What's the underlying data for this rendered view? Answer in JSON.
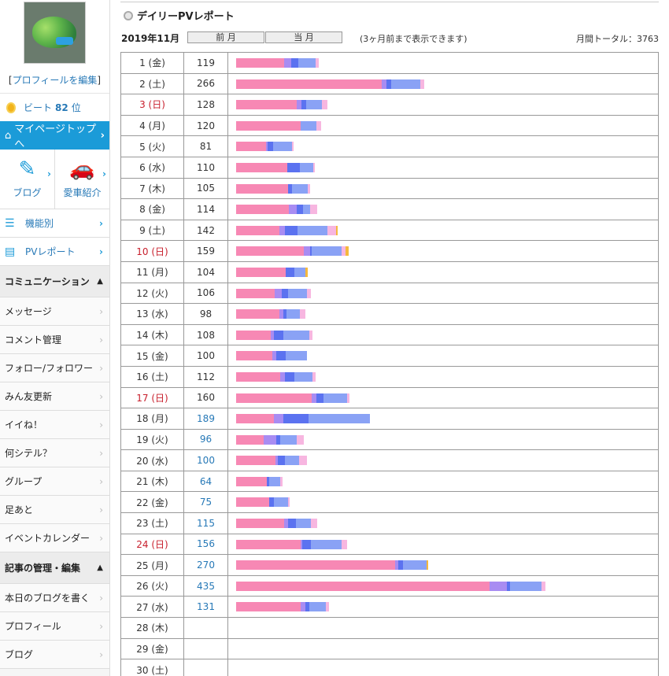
{
  "sidebar": {
    "profile_edit": "プロフィールを編集",
    "beat_label": "ビート",
    "beat_rank": "82",
    "beat_suffix": "位",
    "mypage": "マイページトップへ",
    "tiles": [
      {
        "label": "ブログ",
        "icon": "blog-icon"
      },
      {
        "label": "愛車紹介",
        "icon": "car-icon"
      }
    ],
    "nav": [
      {
        "label": "機能別",
        "icon": "list-icon"
      },
      {
        "label": "PVレポート",
        "icon": "report-icon"
      }
    ],
    "section_comm": "コミュニケーション",
    "comm_items": [
      "メッセージ",
      "コメント管理",
      "フォロー/フォロワー",
      "みん友更新",
      "イイね！",
      "何シテル？",
      "グループ",
      "足あと",
      "イベントカレンダー"
    ],
    "section_articles": "記事の管理・編集",
    "article_items": [
      "本日のブログを書く",
      "プロフィール",
      "ブログ"
    ]
  },
  "main": {
    "title": "デイリーPVレポート",
    "month": "2019年11月",
    "prev_btn": "前 月",
    "curr_btn": "当 月",
    "note": "(3ヶ月前まで表示できます)",
    "total": "月間トータル：3763"
  },
  "colors": {
    "pink": "#f788b4",
    "lavender": "#a88cf2",
    "blue": "#5b72f0",
    "periwinkle": "#8aa2f5",
    "lightpink": "#f7b6e0",
    "orange": "#f5b83c"
  },
  "rows": [
    {
      "day": "1 (金)",
      "count": "119",
      "sun": false,
      "link": false,
      "segs": [
        [
          61,
          "pink"
        ],
        [
          9,
          "lavender"
        ],
        [
          9,
          "blue"
        ],
        [
          22,
          "periwinkle"
        ],
        [
          4,
          "lightpink"
        ]
      ]
    },
    {
      "day": "2 (土)",
      "count": "266",
      "sun": false,
      "link": false,
      "segs": [
        [
          185,
          "pink"
        ],
        [
          6,
          "lavender"
        ],
        [
          6,
          "blue"
        ],
        [
          37,
          "periwinkle"
        ],
        [
          5,
          "lightpink"
        ]
      ]
    },
    {
      "day": "3 (日)",
      "count": "128",
      "sun": true,
      "link": false,
      "segs": [
        [
          77,
          "pink"
        ],
        [
          6,
          "lavender"
        ],
        [
          6,
          "blue"
        ],
        [
          20,
          "periwinkle"
        ],
        [
          7,
          "lightpink"
        ]
      ]
    },
    {
      "day": "4 (月)",
      "count": "120",
      "sun": false,
      "link": false,
      "segs": [
        [
          82,
          "pink"
        ],
        [
          20,
          "periwinkle"
        ],
        [
          6,
          "lightpink"
        ]
      ]
    },
    {
      "day": "5 (火)",
      "count": "81",
      "sun": false,
      "link": false,
      "segs": [
        [
          38,
          "pink"
        ],
        [
          2,
          "lavender"
        ],
        [
          7,
          "blue"
        ],
        [
          24,
          "periwinkle"
        ],
        [
          2,
          "lightpink"
        ]
      ]
    },
    {
      "day": "6 (水)",
      "count": "110",
      "sun": false,
      "link": false,
      "segs": [
        [
          65,
          "pink"
        ],
        [
          16,
          "blue"
        ],
        [
          17,
          "periwinkle"
        ],
        [
          2,
          "lightpink"
        ]
      ]
    },
    {
      "day": "7 (木)",
      "count": "105",
      "sun": false,
      "link": false,
      "segs": [
        [
          66,
          "pink"
        ],
        [
          5,
          "blue"
        ],
        [
          20,
          "periwinkle"
        ],
        [
          3,
          "lightpink"
        ]
      ]
    },
    {
      "day": "8 (金)",
      "count": "114",
      "sun": false,
      "link": false,
      "segs": [
        [
          67,
          "pink"
        ],
        [
          10,
          "lavender"
        ],
        [
          8,
          "blue"
        ],
        [
          9,
          "periwinkle"
        ],
        [
          9,
          "lightpink"
        ]
      ]
    },
    {
      "day": "9 (土)",
      "count": "142",
      "sun": false,
      "link": false,
      "segs": [
        [
          55,
          "pink"
        ],
        [
          7,
          "lavender"
        ],
        [
          16,
          "blue"
        ],
        [
          38,
          "periwinkle"
        ],
        [
          11,
          "lightpink"
        ],
        [
          2,
          "orange"
        ]
      ]
    },
    {
      "day": "10 (日)",
      "count": "159",
      "sun": true,
      "link": false,
      "segs": [
        [
          86,
          "pink"
        ],
        [
          8,
          "lavender"
        ],
        [
          2,
          "blue"
        ],
        [
          18,
          "periwinkle"
        ],
        [
          20,
          "periwinkle"
        ],
        [
          5,
          "lightpink"
        ],
        [
          4,
          "orange"
        ]
      ]
    },
    {
      "day": "11 (月)",
      "count": "104",
      "sun": false,
      "link": false,
      "segs": [
        [
          63,
          "pink"
        ],
        [
          11,
          "blue"
        ],
        [
          14,
          "periwinkle"
        ],
        [
          3,
          "orange"
        ]
      ]
    },
    {
      "day": "12 (火)",
      "count": "106",
      "sun": false,
      "link": false,
      "segs": [
        [
          49,
          "pink"
        ],
        [
          9,
          "lavender"
        ],
        [
          8,
          "blue"
        ],
        [
          24,
          "periwinkle"
        ],
        [
          5,
          "lightpink"
        ]
      ]
    },
    {
      "day": "13 (水)",
      "count": "98",
      "sun": false,
      "link": false,
      "segs": [
        [
          55,
          "pink"
        ],
        [
          5,
          "lavender"
        ],
        [
          4,
          "blue"
        ],
        [
          17,
          "periwinkle"
        ],
        [
          7,
          "lightpink"
        ]
      ]
    },
    {
      "day": "14 (木)",
      "count": "108",
      "sun": false,
      "link": false,
      "segs": [
        [
          44,
          "pink"
        ],
        [
          4,
          "lavender"
        ],
        [
          12,
          "blue"
        ],
        [
          33,
          "periwinkle"
        ],
        [
          4,
          "lightpink"
        ]
      ]
    },
    {
      "day": "15 (金)",
      "count": "100",
      "sun": false,
      "link": false,
      "segs": [
        [
          46,
          "pink"
        ],
        [
          5,
          "lavender"
        ],
        [
          12,
          "blue"
        ],
        [
          27,
          "periwinkle"
        ]
      ]
    },
    {
      "day": "16 (土)",
      "count": "112",
      "sun": false,
      "link": false,
      "segs": [
        [
          56,
          "pink"
        ],
        [
          6,
          "lavender"
        ],
        [
          12,
          "blue"
        ],
        [
          23,
          "periwinkle"
        ],
        [
          4,
          "lightpink"
        ]
      ]
    },
    {
      "day": "17 (日)",
      "count": "160",
      "sun": true,
      "link": false,
      "segs": [
        [
          96,
          "pink"
        ],
        [
          6,
          "lavender"
        ],
        [
          9,
          "blue"
        ],
        [
          30,
          "periwinkle"
        ],
        [
          3,
          "lightpink"
        ]
      ]
    },
    {
      "day": "18 (月)",
      "count": "189",
      "sun": false,
      "link": true,
      "segs": [
        [
          48,
          "pink"
        ],
        [
          12,
          "lavender"
        ],
        [
          32,
          "blue"
        ],
        [
          78,
          "periwinkle"
        ]
      ]
    },
    {
      "day": "19 (火)",
      "count": "96",
      "sun": false,
      "link": true,
      "segs": [
        [
          35,
          "pink"
        ],
        [
          16,
          "lavender"
        ],
        [
          5,
          "blue"
        ],
        [
          21,
          "periwinkle"
        ],
        [
          9,
          "lightpink"
        ]
      ]
    },
    {
      "day": "20 (水)",
      "count": "100",
      "sun": false,
      "link": true,
      "segs": [
        [
          50,
          "pink"
        ],
        [
          3,
          "lavender"
        ],
        [
          9,
          "blue"
        ],
        [
          18,
          "periwinkle"
        ],
        [
          10,
          "lightpink"
        ]
      ]
    },
    {
      "day": "21 (木)",
      "count": "64",
      "sun": false,
      "link": true,
      "segs": [
        [
          39,
          "pink"
        ],
        [
          3,
          "blue"
        ],
        [
          14,
          "periwinkle"
        ],
        [
          3,
          "lightpink"
        ]
      ]
    },
    {
      "day": "22 (金)",
      "count": "75",
      "sun": false,
      "link": true,
      "segs": [
        [
          42,
          "pink"
        ],
        [
          6,
          "blue"
        ],
        [
          18,
          "periwinkle"
        ],
        [
          2,
          "lightpink"
        ]
      ]
    },
    {
      "day": "23 (土)",
      "count": "115",
      "sun": false,
      "link": true,
      "segs": [
        [
          61,
          "pink"
        ],
        [
          5,
          "lavender"
        ],
        [
          10,
          "blue"
        ],
        [
          19,
          "periwinkle"
        ],
        [
          8,
          "lightpink"
        ]
      ]
    },
    {
      "day": "24 (日)",
      "count": "156",
      "sun": true,
      "link": true,
      "segs": [
        [
          82,
          "pink"
        ],
        [
          2,
          "lavender"
        ],
        [
          11,
          "blue"
        ],
        [
          39,
          "periwinkle"
        ],
        [
          7,
          "lightpink"
        ]
      ]
    },
    {
      "day": "25 (月)",
      "count": "270",
      "sun": false,
      "link": true,
      "segs": [
        [
          202,
          "pink"
        ],
        [
          4,
          "lavender"
        ],
        [
          6,
          "blue"
        ],
        [
          30,
          "periwinkle"
        ],
        [
          2,
          "orange"
        ]
      ]
    },
    {
      "day": "26 (火)",
      "count": "435",
      "sun": false,
      "link": true,
      "segs": [
        [
          322,
          "pink"
        ],
        [
          22,
          "lavender"
        ],
        [
          4,
          "blue"
        ],
        [
          40,
          "periwinkle"
        ],
        [
          5,
          "lightpink"
        ]
      ]
    },
    {
      "day": "27 (水)",
      "count": "131",
      "sun": false,
      "link": true,
      "segs": [
        [
          82,
          "pink"
        ],
        [
          6,
          "lavender"
        ],
        [
          5,
          "blue"
        ],
        [
          21,
          "periwinkle"
        ],
        [
          4,
          "lightpink"
        ]
      ]
    },
    {
      "day": "28 (木)",
      "count": "",
      "sun": false,
      "link": false,
      "segs": []
    },
    {
      "day": "29 (金)",
      "count": "",
      "sun": false,
      "link": false,
      "segs": []
    },
    {
      "day": "30 (土)",
      "count": "",
      "sun": false,
      "link": false,
      "segs": []
    }
  ]
}
